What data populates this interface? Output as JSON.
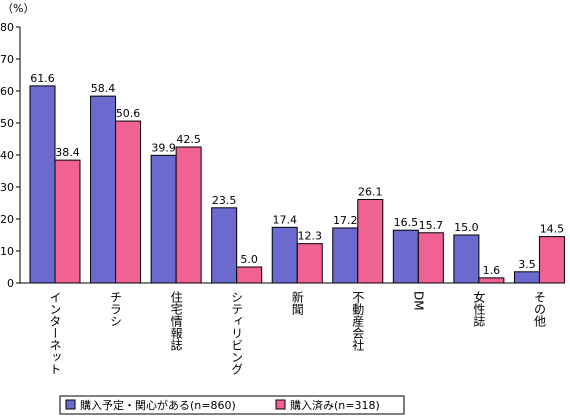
{
  "chart_data": {
    "type": "bar",
    "unit_label": "（%）",
    "ylim": [
      0,
      80
    ],
    "yticks": [
      0,
      10,
      20,
      30,
      40,
      50,
      60,
      70,
      80
    ],
    "grid": false,
    "legend_position": "bottom",
    "categories": [
      "インターネット",
      "チラシ",
      "住宅情報誌",
      "シティリビング",
      "新聞",
      "不動産会社",
      "DM",
      "女性誌",
      "その他"
    ],
    "series": [
      {
        "name": "購入予定・関心がある(n=860)",
        "color": "#6b6bcf",
        "values": [
          61.6,
          58.4,
          39.9,
          23.5,
          17.4,
          17.2,
          16.5,
          15.0,
          3.5
        ],
        "labels": [
          "61.6",
          "58.4",
          "39.9",
          "23.5",
          "17.4",
          "17.2",
          "16.5",
          "15.0",
          "3.5"
        ]
      },
      {
        "name": "購入済み(n=318)",
        "color": "#f06292",
        "values": [
          38.4,
          50.6,
          42.5,
          5.0,
          12.3,
          26.1,
          15.7,
          1.6,
          14.5
        ],
        "labels": [
          "38.4",
          "50.6",
          "42.5",
          "5.0",
          "12.3",
          "26.1",
          "15.7",
          "1.6",
          "14.5"
        ]
      }
    ]
  }
}
